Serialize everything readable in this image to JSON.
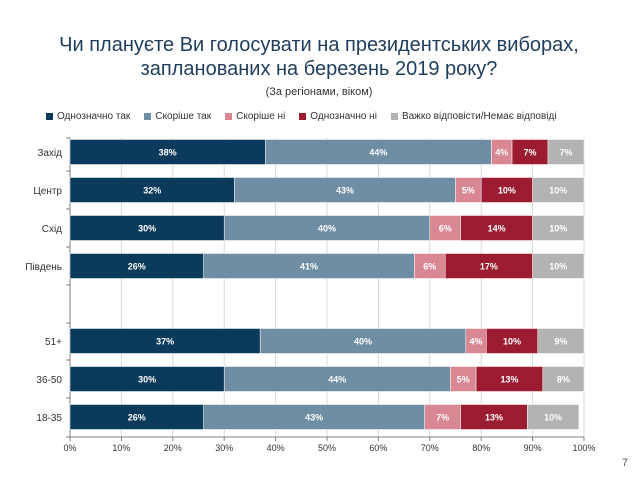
{
  "chart_data": {
    "type": "bar",
    "orientation": "horizontal",
    "stacked": true,
    "title": "Чи плануєте Ви голосувати на президентських виборах, запланованих на березень 2019 року?",
    "title_line1": "Чи плануєте Ви голосувати на президентських виборах,",
    "title_line2": "запланованих на березень 2019 року?",
    "subtitle": "(За регіонами, віком)",
    "categories": [
      "Захід",
      "Центр",
      "Схід",
      "Південь",
      "51+",
      "36-50",
      "18-35"
    ],
    "gap_after_index": 3,
    "series": [
      {
        "name": "Однозначно так",
        "color": "#0b3a5b",
        "values": [
          38,
          32,
          30,
          26,
          37,
          30,
          26
        ]
      },
      {
        "name": "Скоріше так",
        "color": "#6f8ea3",
        "values": [
          44,
          43,
          40,
          41,
          40,
          44,
          43
        ]
      },
      {
        "name": "Скоріше ні",
        "color": "#d98793",
        "values": [
          4,
          5,
          6,
          6,
          4,
          5,
          7
        ]
      },
      {
        "name": "Однозначно ні",
        "color": "#9b1b30",
        "values": [
          7,
          10,
          14,
          17,
          10,
          13,
          13
        ]
      },
      {
        "name": "Важко відповісти/Немає відповіді",
        "color": "#b3b3b3",
        "values": [
          7,
          10,
          10,
          10,
          9,
          8,
          10
        ]
      }
    ],
    "xlim": [
      0,
      100
    ],
    "xticks": [
      "0%",
      "10%",
      "20%",
      "30%",
      "40%",
      "50%",
      "60%",
      "70%",
      "80%",
      "90%",
      "100%"
    ],
    "legend_position": "top"
  },
  "page_number": "7"
}
